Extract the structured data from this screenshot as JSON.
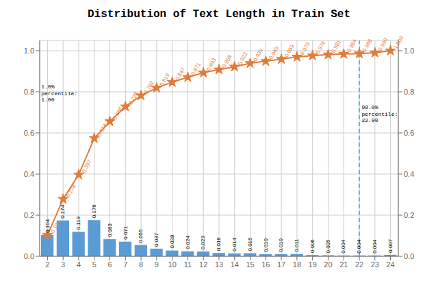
{
  "chart_data": {
    "type": "bar",
    "title": "Distribution of Text Length in Train Set",
    "x": [
      2,
      3,
      4,
      5,
      6,
      7,
      8,
      9,
      10,
      11,
      12,
      13,
      14,
      15,
      16,
      17,
      18,
      19,
      20,
      21,
      22,
      23,
      24
    ],
    "xlim": [
      1.5,
      24.5
    ],
    "xticks": [
      2,
      3,
      4,
      5,
      6,
      7,
      8,
      9,
      10,
      11,
      12,
      13,
      14,
      15,
      16,
      17,
      18,
      19,
      20,
      21,
      22,
      23,
      24
    ],
    "ylim": [
      0.0,
      1.05
    ],
    "yticks": [
      {
        "value": 0,
        "label": "0.0"
      },
      {
        "value": 0.2,
        "label": "0.2"
      },
      {
        "value": 0.4,
        "label": "0.4"
      },
      {
        "value": 0.6,
        "label": "0.6"
      },
      {
        "value": 0.8,
        "label": "0.8"
      },
      {
        "value": 1.0,
        "label": "1.0"
      }
    ],
    "y2lim": [
      0.0,
      1.05
    ],
    "y2ticks": [
      {
        "value": 0,
        "label": "0.0"
      },
      {
        "value": 0.2,
        "label": "0.2"
      },
      {
        "value": 0.4,
        "label": "0.4"
      },
      {
        "value": 0.6,
        "label": "0.6"
      },
      {
        "value": 0.8,
        "label": "0.8"
      },
      {
        "value": 1.0,
        "label": "1.0"
      }
    ],
    "grid": true,
    "series": [
      {
        "type": "bar",
        "color": "#5b9bd5",
        "data_labels": true,
        "values": [
          0.104,
          0.174,
          0.119,
          0.176,
          0.083,
          0.071,
          0.055,
          0.037,
          0.028,
          0.024,
          0.023,
          0.016,
          0.014,
          0.015,
          0.01,
          0.01,
          0.011,
          0.006,
          0.005,
          0.004,
          0.004,
          0.004,
          0.007
        ],
        "value_labels": [
          "0.104",
          "0.174",
          "0.119",
          "0.176",
          "0.083",
          "0.071",
          "0.055",
          "0.037",
          "0.028",
          "0.024",
          "0.023",
          "0.016",
          "0.014",
          "0.015",
          "0.010",
          "0.010",
          "0.011",
          "0.006",
          "0.005",
          "0.004",
          "0.004",
          "0.004",
          "0.007"
        ]
      },
      {
        "type": "line",
        "axis": "y2",
        "color": "#e07b39",
        "marker": "star",
        "data_labels": true,
        "values": [
          0.104,
          0.278,
          0.397,
          0.574,
          0.656,
          0.728,
          0.782,
          0.819,
          0.847,
          0.871,
          0.893,
          0.908,
          0.922,
          0.939,
          0.949,
          0.959,
          0.97,
          0.976,
          0.981,
          0.984,
          0.986,
          0.99,
          1.0
        ],
        "value_labels": [
          "0.104",
          "0.278",
          "0.397",
          "0.574",
          "0.656",
          "0.728",
          "0.782",
          "0.819",
          "0.847",
          "0.871",
          "0.893",
          "0.908",
          "0.922",
          "0.939",
          "0.949",
          "0.959",
          "0.970",
          "0.976",
          "0.981",
          "0.984",
          "0.986",
          "0.990",
          "1.000"
        ]
      }
    ],
    "annotations": [
      {
        "type": "vline",
        "x": 22,
        "color": "#00bfff",
        "line_style": "dashed"
      },
      {
        "text": "1.0%\npercentile:\n1.00",
        "x": 1.6,
        "y": 0.84
      },
      {
        "text": "99.0%\npercentile:\n22.00",
        "x": 22.15,
        "y": 0.74
      }
    ]
  }
}
